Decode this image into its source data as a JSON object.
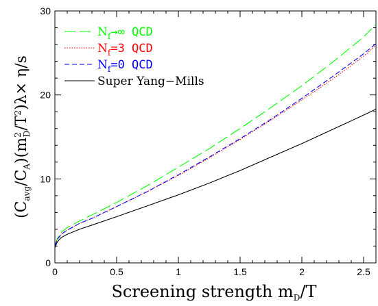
{
  "chart_data": {
    "type": "line",
    "title": "",
    "xlabel": "Screening strength m_D/T",
    "ylabel": "(C_avg/C_A)(m_D^2/T^2)λ× η/s",
    "xlim": [
      0,
      2.6
    ],
    "ylim": [
      0,
      30
    ],
    "x_ticks": [
      "0",
      "0.5",
      "1",
      "1.5",
      "2",
      "2.5"
    ],
    "y_ticks": [
      "0",
      "10",
      "20",
      "30"
    ],
    "legend_position": "top-left",
    "series": [
      {
        "name": "N_f→∞ QCD",
        "legend_prefix": "N",
        "legend_sub": "f",
        "legend_suffix": "→∞ QCD",
        "color": "#00ff00",
        "dash": "long-dash",
        "x": [
          0.0,
          0.02,
          0.05,
          0.1,
          0.2,
          0.3,
          0.5,
          0.75,
          1.0,
          1.25,
          1.5,
          1.75,
          2.0,
          2.25,
          2.5,
          2.6
        ],
        "values": [
          2.0,
          2.9,
          3.6,
          4.2,
          5.0,
          5.7,
          7.2,
          9.2,
          11.4,
          13.6,
          16.0,
          18.5,
          21.1,
          23.9,
          26.9,
          28.4
        ]
      },
      {
        "name": "N_f=3 QCD",
        "legend_prefix": "N",
        "legend_sub": "f",
        "legend_suffix": "=3 QCD",
        "color": "#ff0000",
        "dash": "dotted",
        "x": [
          0.0,
          0.02,
          0.05,
          0.1,
          0.2,
          0.3,
          0.5,
          0.75,
          1.0,
          1.25,
          1.5,
          1.75,
          2.0,
          2.25,
          2.5,
          2.6
        ],
        "values": [
          2.0,
          2.8,
          3.4,
          3.9,
          4.7,
          5.3,
          6.7,
          8.5,
          10.4,
          12.5,
          14.7,
          17.0,
          19.4,
          21.9,
          24.6,
          25.9
        ]
      },
      {
        "name": "N_f=0 QCD",
        "legend_prefix": "N",
        "legend_sub": "f",
        "legend_suffix": "=0 QCD",
        "color": "#0000ff",
        "dash": "short-dash",
        "x": [
          0.0,
          0.02,
          0.05,
          0.1,
          0.2,
          0.3,
          0.5,
          0.75,
          1.0,
          1.25,
          1.5,
          1.75,
          2.0,
          2.25,
          2.5,
          2.6
        ],
        "values": [
          2.0,
          2.8,
          3.4,
          3.9,
          4.7,
          5.3,
          6.7,
          8.5,
          10.5,
          12.6,
          14.8,
          17.1,
          19.6,
          22.2,
          24.9,
          26.1
        ]
      },
      {
        "name": "Super Yang-Mills",
        "legend_prefix": "Super Yang−Mills",
        "legend_sub": "",
        "legend_suffix": "",
        "color": "#000000",
        "dash": "solid",
        "x": [
          0.0,
          0.02,
          0.05,
          0.1,
          0.2,
          0.3,
          0.5,
          0.75,
          1.0,
          1.25,
          1.5,
          1.75,
          2.0,
          2.25,
          2.5,
          2.6
        ],
        "values": [
          1.8,
          2.5,
          3.0,
          3.4,
          4.0,
          4.5,
          5.5,
          6.8,
          8.1,
          9.5,
          11.0,
          12.6,
          14.2,
          15.9,
          17.6,
          18.3
        ]
      }
    ]
  }
}
